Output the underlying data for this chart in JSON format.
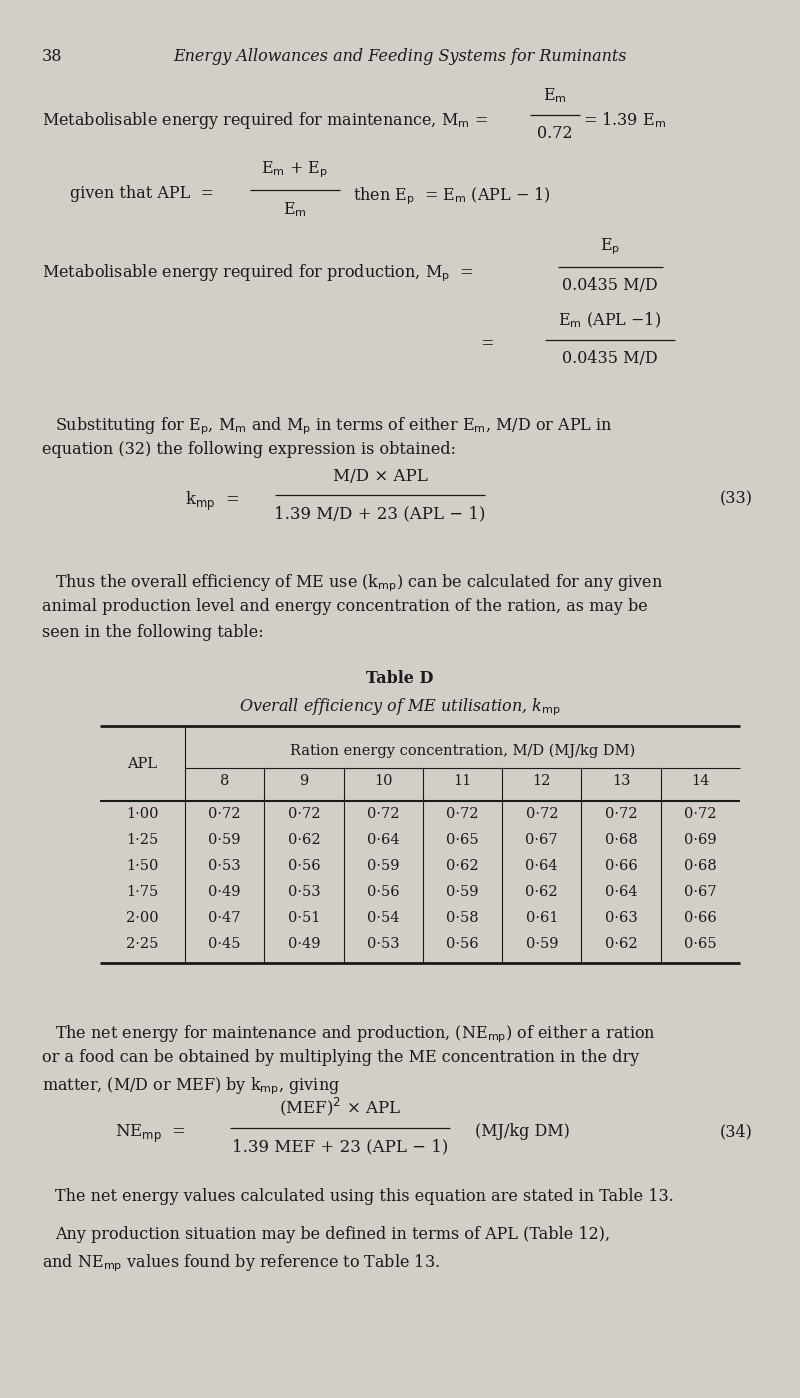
{
  "bg_color": "#d3cec7",
  "text_color": "#1a1a1a",
  "page_number": "38",
  "page_title": "Energy Allowances and Feeding Systems for Ruminants",
  "apl_values": [
    "1·00",
    "1·25",
    "1·50",
    "1·75",
    "2·00",
    "2·25"
  ],
  "md_columns": [
    "8",
    "9",
    "10",
    "11",
    "12",
    "13",
    "14"
  ],
  "table_data": [
    [
      0.72,
      0.72,
      0.72,
      0.72,
      0.72,
      0.72,
      0.72
    ],
    [
      0.59,
      0.62,
      0.64,
      0.65,
      0.67,
      0.68,
      0.69
    ],
    [
      0.53,
      0.56,
      0.59,
      0.62,
      0.64,
      0.66,
      0.68
    ],
    [
      0.49,
      0.53,
      0.56,
      0.59,
      0.62,
      0.64,
      0.67
    ],
    [
      0.47,
      0.51,
      0.54,
      0.58,
      0.61,
      0.63,
      0.66
    ],
    [
      0.45,
      0.49,
      0.53,
      0.56,
      0.59,
      0.62,
      0.65
    ]
  ],
  "minus_char": "−",
  "times_char": "×",
  "middle_dot": "·"
}
